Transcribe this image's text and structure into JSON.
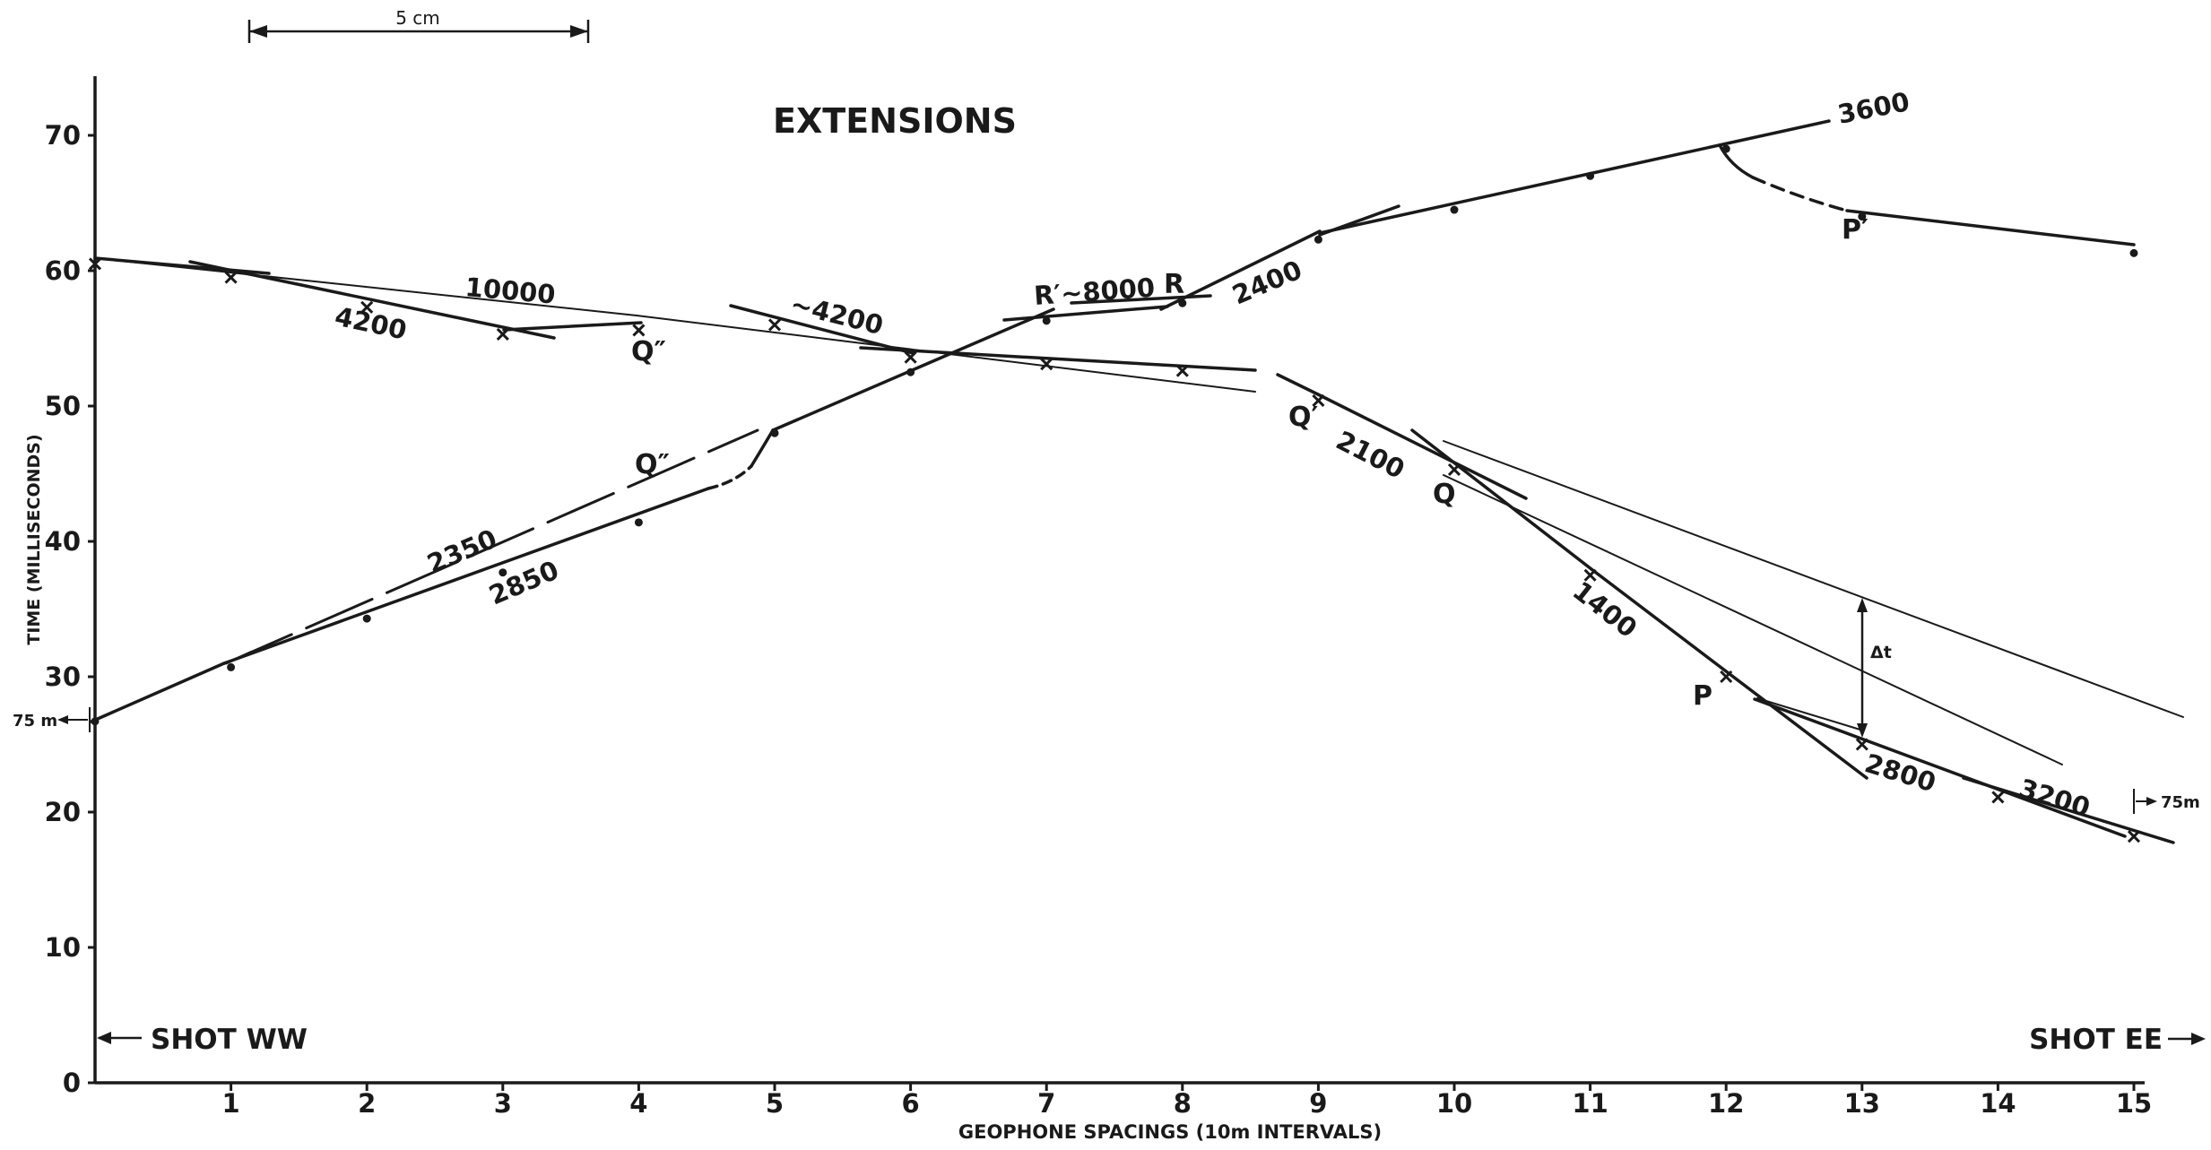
{
  "chart_data": {
    "type": "line",
    "title": "EXTENSIONS",
    "xlabel": "GEOPHONE SPACINGS (10m INTERVALS)",
    "ylabel": "TIME (MILLISECONDS)",
    "xlim": [
      0,
      15
    ],
    "ylim": [
      0,
      70
    ],
    "x_ticks": [
      1,
      2,
      3,
      4,
      5,
      6,
      7,
      8,
      9,
      10,
      11,
      12,
      13,
      14,
      15
    ],
    "y_ticks": [
      0,
      10,
      20,
      30,
      40,
      50,
      60,
      70
    ],
    "grid": false,
    "scale_bar": "5 cm",
    "shot_labels": {
      "west": "SHOT WW",
      "east": "SHOT EE"
    },
    "offset_labels": {
      "west": "75 m",
      "east": "75m"
    },
    "delta_label": "Δt",
    "series": [
      {
        "marker": "x",
        "points": [
          [
            0,
            60.5
          ],
          [
            1,
            59.5
          ],
          [
            2,
            57.3
          ],
          [
            3,
            55.3
          ],
          [
            4,
            55.6
          ],
          [
            5,
            56.0
          ],
          [
            6,
            53.6
          ],
          [
            7,
            53.1
          ],
          [
            8,
            52.6
          ],
          [
            9,
            50.4
          ],
          [
            10,
            45.3
          ],
          [
            11,
            37.5
          ],
          [
            12,
            30.0
          ],
          [
            13,
            25.0
          ],
          [
            14,
            21.1
          ],
          [
            15,
            18.2
          ]
        ]
      },
      {
        "marker": "dot",
        "points": [
          [
            0,
            26.7
          ],
          [
            1,
            30.7
          ],
          [
            2,
            34.3
          ],
          [
            3,
            37.7
          ],
          [
            4,
            41.4
          ],
          [
            5,
            48.0
          ],
          [
            6,
            52.5
          ],
          [
            7,
            56.3
          ],
          [
            8,
            57.6
          ],
          [
            9,
            62.3
          ],
          [
            10,
            64.5
          ],
          [
            11,
            67.0
          ],
          [
            12,
            69.0
          ],
          [
            13,
            64.0
          ],
          [
            15,
            61.3
          ]
        ]
      }
    ],
    "velocity_labels": [
      "10000",
      "4200",
      "~4200",
      "R′~8000",
      "2400",
      "3600",
      "2350",
      "2850",
      "2100",
      "1400",
      "2800",
      "3200"
    ],
    "point_labels": [
      "Q″",
      "Q″",
      "R",
      "P′",
      "Q′",
      "Q",
      "P"
    ]
  }
}
